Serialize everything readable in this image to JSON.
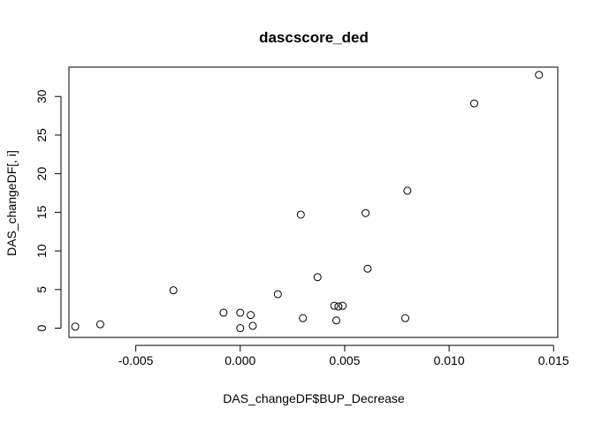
{
  "chart_data": {
    "type": "scatter",
    "title": "dascscore_ded",
    "xlabel": "DAS_changeDF$BUP_Decrease",
    "ylabel": "DAS_changeDF[, i]",
    "xlim": [
      -0.0082,
      0.0152
    ],
    "ylim": [
      -1.2,
      33.8
    ],
    "xticks": [
      -0.005,
      0.0,
      0.005,
      0.01,
      0.015
    ],
    "xtick_labels": [
      "-0.005",
      "0.000",
      "0.005",
      "0.010",
      "0.015"
    ],
    "yticks": [
      0,
      5,
      10,
      15,
      20,
      25,
      30
    ],
    "ytick_labels": [
      "0",
      "5",
      "10",
      "15",
      "20",
      "25",
      "30"
    ],
    "grid": false,
    "marker": "open-circle",
    "points": [
      {
        "x": -0.0079,
        "y": 0.2
      },
      {
        "x": -0.0067,
        "y": 0.5
      },
      {
        "x": -0.0032,
        "y": 4.9
      },
      {
        "x": -0.0008,
        "y": 2.0
      },
      {
        "x": 0.0,
        "y": 0.0
      },
      {
        "x": 0.0,
        "y": 2.0
      },
      {
        "x": 0.0005,
        "y": 1.7
      },
      {
        "x": 0.0006,
        "y": 0.3
      },
      {
        "x": 0.0018,
        "y": 4.4
      },
      {
        "x": 0.0029,
        "y": 14.7
      },
      {
        "x": 0.003,
        "y": 1.3
      },
      {
        "x": 0.0037,
        "y": 6.6
      },
      {
        "x": 0.0045,
        "y": 2.9
      },
      {
        "x": 0.0046,
        "y": 1.0
      },
      {
        "x": 0.0047,
        "y": 2.8
      },
      {
        "x": 0.0049,
        "y": 2.9
      },
      {
        "x": 0.006,
        "y": 14.9
      },
      {
        "x": 0.0061,
        "y": 7.7
      },
      {
        "x": 0.0079,
        "y": 1.3
      },
      {
        "x": 0.008,
        "y": 17.8
      },
      {
        "x": 0.0112,
        "y": 29.1
      },
      {
        "x": 0.0143,
        "y": 32.8
      }
    ]
  }
}
